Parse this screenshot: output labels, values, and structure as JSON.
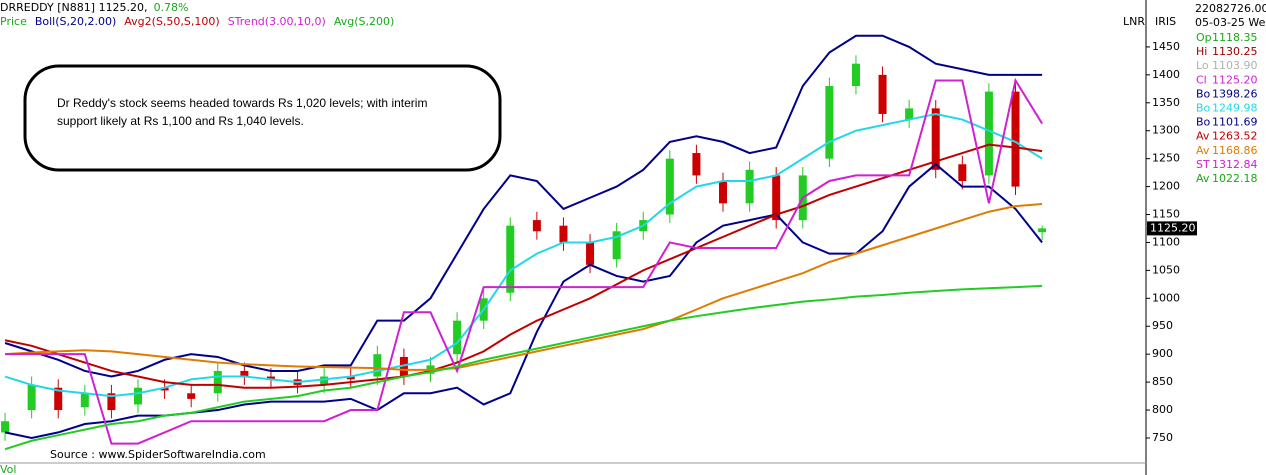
{
  "chart_data": {
    "type": "candlestick",
    "title": "DRREDDY [N881] 1125.20,",
    "change": "0.78%",
    "indicators": [
      {
        "text": "Price",
        "color": "#1aa81a"
      },
      {
        "text": "Boll(S,20,2.00)",
        "color": "#00008b"
      },
      {
        "text": "Avg2(S,50,S,100)",
        "color": "#c00000"
      },
      {
        "text": "STrend(3.00,10,0)",
        "color": "#d020d0"
      },
      {
        "text": "Avg(S,200)",
        "color": "#1aa81a"
      }
    ],
    "annotation": [
      "Dr Reddy's stock seems headed towards Rs 1,020 levels; with interim",
      "support likely at Rs 1,100 and Rs 1,040 levels."
    ],
    "source": "Source : www.SpiderSoftwareIndia.com",
    "axis_tags": [
      "LNR",
      "IRIS"
    ],
    "price_label": "1125.20",
    "volume_label": "Vol",
    "panel_header": [
      "22082726.00",
      "05-03-25 We"
    ],
    "panel": [
      {
        "label": "Op",
        "value": "1118.35",
        "color": "#1aa81a"
      },
      {
        "label": "Hi",
        "value": "1130.25",
        "color": "#a00000"
      },
      {
        "label": "Lo",
        "value": "1103.90",
        "color": "#b0b0b0"
      },
      {
        "label": "Cl",
        "value": "1125.20",
        "color": "#d020d0"
      },
      {
        "label": "Bo",
        "value": "1398.26",
        "color": "#00008b"
      },
      {
        "label": "Bo",
        "value": "1249.98",
        "color": "#22d8e8"
      },
      {
        "label": "Bo",
        "value": "1101.69",
        "color": "#00008b"
      },
      {
        "label": "Av",
        "value": "1263.52",
        "color": "#c00000"
      },
      {
        "label": "Av",
        "value": "1168.86",
        "color": "#e07b00"
      },
      {
        "label": "ST",
        "value": "1312.84",
        "color": "#d020d0"
      },
      {
        "label": "Av",
        "value": "1022.18",
        "color": "#1aa81a"
      }
    ],
    "x": [
      0,
      1,
      2,
      3,
      4,
      5,
      6,
      7,
      8,
      9,
      10,
      11,
      12,
      13,
      14,
      15,
      16,
      17,
      18,
      19,
      20,
      21,
      22,
      23,
      24,
      25,
      26,
      27,
      28,
      29,
      30,
      31,
      32,
      33,
      34,
      35,
      36,
      37,
      38,
      39
    ],
    "xlim": [
      -0.19,
      42.87
    ],
    "ylim": [
      707,
      1534
    ],
    "yticks": [
      750,
      800,
      850,
      900,
      950,
      1000,
      1050,
      1100,
      1150,
      1200,
      1250,
      1300,
      1350,
      1400,
      1450
    ],
    "up_color": "#22cc22",
    "down_color": "#cc0000",
    "open": [
      760,
      800,
      840,
      805,
      830,
      810,
      840,
      830,
      830,
      870,
      860,
      855,
      845,
      860,
      860,
      895,
      865,
      900,
      960,
      1010,
      1140,
      1130,
      1100,
      1070,
      1120,
      1150,
      1260,
      1210,
      1170,
      1220,
      1140,
      1250,
      1380,
      1400,
      1320,
      1340,
      1240,
      1220,
      1370,
      1118.35
    ],
    "high": [
      795,
      860,
      855,
      845,
      845,
      855,
      855,
      845,
      885,
      885,
      875,
      870,
      875,
      875,
      915,
      910,
      895,
      975,
      1015,
      1145,
      1155,
      1145,
      1115,
      1135,
      1155,
      1265,
      1275,
      1225,
      1245,
      1235,
      1235,
      1395,
      1435,
      1415,
      1355,
      1355,
      1255,
      1385,
      1385,
      1130.25
    ],
    "low": [
      745,
      785,
      785,
      790,
      785,
      795,
      820,
      805,
      815,
      845,
      840,
      830,
      830,
      840,
      845,
      845,
      850,
      885,
      945,
      995,
      1105,
      1085,
      1045,
      1055,
      1105,
      1135,
      1205,
      1155,
      1155,
      1125,
      1125,
      1235,
      1365,
      1315,
      1305,
      1215,
      1195,
      1205,
      1185,
      1103.9
    ],
    "close": [
      780,
      845,
      800,
      830,
      800,
      840,
      835,
      820,
      870,
      860,
      855,
      845,
      860,
      855,
      900,
      860,
      880,
      960,
      1000,
      1130,
      1120,
      1100,
      1060,
      1120,
      1140,
      1250,
      1220,
      1170,
      1230,
      1140,
      1220,
      1380,
      1420,
      1330,
      1340,
      1230,
      1210,
      1370,
      1200,
      1125.2
    ],
    "series": [
      {
        "color": "#00008b",
        "values": [
          920,
          905,
          890,
          870,
          860,
          870,
          890,
          900,
          895,
          880,
          870,
          870,
          880,
          880,
          960,
          960,
          1000,
          1080,
          1160,
          1220,
          1210,
          1160,
          1180,
          1200,
          1230,
          1280,
          1290,
          1280,
          1260,
          1270,
          1380,
          1440,
          1470,
          1470,
          1450,
          1420,
          1410,
          1400,
          1400,
          1400
        ]
      },
      {
        "color": "#22d8e8",
        "values": [
          860,
          845,
          835,
          830,
          825,
          830,
          840,
          855,
          860,
          860,
          855,
          850,
          855,
          860,
          870,
          880,
          890,
          920,
          980,
          1050,
          1080,
          1100,
          1100,
          1110,
          1130,
          1170,
          1200,
          1210,
          1210,
          1220,
          1250,
          1280,
          1300,
          1310,
          1320,
          1330,
          1320,
          1300,
          1280,
          1250
        ]
      },
      {
        "color": "#00008b",
        "values": [
          760,
          750,
          760,
          775,
          780,
          790,
          790,
          795,
          800,
          810,
          815,
          815,
          815,
          820,
          800,
          830,
          830,
          840,
          810,
          830,
          940,
          1030,
          1060,
          1040,
          1030,
          1040,
          1100,
          1130,
          1140,
          1150,
          1100,
          1080,
          1080,
          1120,
          1200,
          1240,
          1200,
          1200,
          1160,
          1100
        ]
      },
      {
        "color": "#c00000",
        "values": [
          925,
          915,
          900,
          885,
          870,
          860,
          850,
          845,
          845,
          840,
          840,
          842,
          845,
          850,
          855,
          860,
          870,
          885,
          905,
          935,
          960,
          980,
          1000,
          1025,
          1050,
          1070,
          1090,
          1110,
          1130,
          1150,
          1165,
          1185,
          1200,
          1215,
          1230,
          1245,
          1260,
          1275,
          1270,
          1263.52
        ]
      },
      {
        "color": "#e07b00",
        "values": [
          900,
          903,
          905,
          907,
          905,
          900,
          895,
          890,
          885,
          882,
          880,
          878,
          877,
          876,
          875,
          872,
          872,
          875,
          885,
          895,
          905,
          915,
          925,
          935,
          945,
          960,
          980,
          1000,
          1015,
          1030,
          1045,
          1065,
          1080,
          1095,
          1110,
          1125,
          1140,
          1155,
          1165,
          1168.86
        ]
      },
      {
        "color": "#d020d0",
        "values": [
          900,
          900,
          900,
          900,
          740,
          740,
          760,
          780,
          780,
          780,
          780,
          780,
          780,
          800,
          800,
          975,
          975,
          870,
          1020,
          1020,
          1020,
          1020,
          1020,
          1020,
          1020,
          1100,
          1090,
          1090,
          1090,
          1090,
          1180,
          1210,
          1220,
          1220,
          1220,
          1390,
          1390,
          1170,
          1390,
          1312.84
        ]
      },
      {
        "color": "#22cc22",
        "values": [
          730,
          745,
          755,
          765,
          775,
          780,
          790,
          795,
          805,
          815,
          820,
          825,
          835,
          840,
          850,
          860,
          868,
          878,
          890,
          900,
          910,
          920,
          930,
          940,
          950,
          960,
          968,
          975,
          982,
          988,
          994,
          998,
          1003,
          1006,
          1010,
          1013,
          1016,
          1018,
          1020,
          1022.18
        ]
      }
    ]
  }
}
